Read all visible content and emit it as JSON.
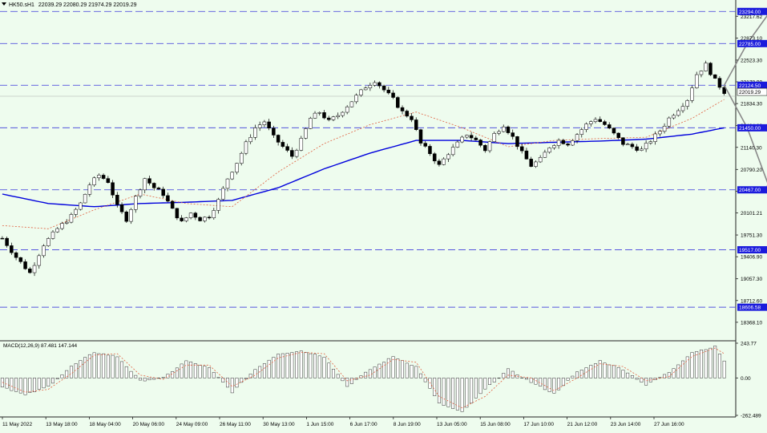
{
  "header": {
    "symbol": "HK50.sH1",
    "ohlc": "22039.29 22080.29 21974.29 22019.29"
  },
  "macd": {
    "label": "MACD(12,26,9) 87.481 147.144",
    "ticks": [
      "243.77",
      "0.00",
      "-262.489"
    ]
  },
  "colors": {
    "background": "#eefcee",
    "ma_blue": "#0000dd",
    "ma_red": "#e06040",
    "level_line": "#5555dd",
    "level_label_bg": "#1b1bdc",
    "current_label_bg": "#ffffff",
    "arrow": "#888888",
    "candle": "#000000"
  },
  "chart_data": {
    "type": "candlestick",
    "instrument": "HK50",
    "timeframe": "H1",
    "ylim": [
      18100,
      23450
    ],
    "y_ticks": [
      "23217.62",
      "22873.10",
      "22523.30",
      "22178.90",
      "21834.30",
      "21484.80",
      "21140.30",
      "20790.20",
      "20445.60",
      "20101.21",
      "19751.30",
      "19406.90",
      "19057.30",
      "18712.60",
      "18368.10"
    ],
    "x_labels": [
      "11 May 2022",
      "13 May 18:00",
      "18 May 04:00",
      "20 May 06:00",
      "24 May 09:00",
      "26 May 11:00",
      "30 May 13:00",
      "1 Jun 15:00",
      "6 Jun 17:00",
      "8 Jun 19:00",
      "13 Jun 05:00",
      "15 Jun 08:00",
      "17 Jun 10:00",
      "21 Jun 12:00",
      "23 Jun 14:00",
      "27 Jun 16:00"
    ],
    "levels": [
      {
        "label": "23294.00",
        "value": 23294.0
      },
      {
        "label": "22785.00",
        "value": 22785.0
      },
      {
        "label": "22124.50",
        "value": 22124.5
      },
      {
        "label": "21450.00",
        "value": 21450.0
      },
      {
        "label": "20467.00",
        "value": 20467.0
      },
      {
        "label": "19517.00",
        "value": 19517.0
      },
      {
        "label": "18606.58",
        "value": 18606.58
      }
    ],
    "current_price": {
      "label": "22019.29",
      "value": 22019.29
    },
    "close_path": [
      [
        0,
        19700
      ],
      [
        3,
        19400
      ],
      [
        6,
        19150
      ],
      [
        9,
        19600
      ],
      [
        12,
        19850
      ],
      [
        15,
        20050
      ],
      [
        17,
        20250
      ],
      [
        19,
        20550
      ],
      [
        21,
        20700
      ],
      [
        23,
        20600
      ],
      [
        25,
        20200
      ],
      [
        27,
        20000
      ],
      [
        29,
        20350
      ],
      [
        31,
        20650
      ],
      [
        33,
        20500
      ],
      [
        35,
        20400
      ],
      [
        37,
        20150
      ],
      [
        39,
        19950
      ],
      [
        41,
        20100
      ],
      [
        43,
        20000
      ],
      [
        45,
        20050
      ],
      [
        47,
        20300
      ],
      [
        49,
        20650
      ],
      [
        51,
        20900
      ],
      [
        53,
        21200
      ],
      [
        55,
        21450
      ],
      [
        57,
        21550
      ],
      [
        59,
        21300
      ],
      [
        61,
        21150
      ],
      [
        63,
        21000
      ],
      [
        65,
        21250
      ],
      [
        67,
        21600
      ],
      [
        69,
        21700
      ],
      [
        71,
        21550
      ],
      [
        73,
        21650
      ],
      [
        75,
        21800
      ],
      [
        77,
        21950
      ],
      [
        79,
        22100
      ],
      [
        81,
        22200
      ],
      [
        83,
        22050
      ],
      [
        85,
        21900
      ],
      [
        87,
        21700
      ],
      [
        89,
        21600
      ],
      [
        91,
        21200
      ],
      [
        93,
        21050
      ],
      [
        95,
        20850
      ],
      [
        97,
        21050
      ],
      [
        99,
        21200
      ],
      [
        101,
        21350
      ],
      [
        103,
        21250
      ],
      [
        105,
        21100
      ],
      [
        107,
        21350
      ],
      [
        109,
        21500
      ],
      [
        111,
        21300
      ],
      [
        113,
        21050
      ],
      [
        115,
        20850
      ],
      [
        117,
        20950
      ],
      [
        119,
        21150
      ],
      [
        121,
        21250
      ],
      [
        123,
        21200
      ],
      [
        125,
        21350
      ],
      [
        127,
        21500
      ],
      [
        129,
        21600
      ],
      [
        131,
        21500
      ],
      [
        133,
        21350
      ],
      [
        135,
        21200
      ],
      [
        137,
        21150
      ],
      [
        139,
        21100
      ],
      [
        141,
        21250
      ],
      [
        143,
        21400
      ],
      [
        145,
        21600
      ],
      [
        147,
        21750
      ],
      [
        149,
        21900
      ],
      [
        151,
        22300
      ],
      [
        153,
        22450
      ],
      [
        155,
        22200
      ],
      [
        157,
        22019
      ]
    ],
    "projection": {
      "origin": [
        157,
        22124.5
      ],
      "up": [
        [
          162,
          22785
        ],
        [
          167,
          23294
        ]
      ],
      "down": [
        [
          162,
          21450
        ],
        [
          167,
          20467
        ]
      ]
    },
    "ma_slow": [
      [
        0,
        20400
      ],
      [
        10,
        20250
      ],
      [
        20,
        20200
      ],
      [
        30,
        20250
      ],
      [
        40,
        20270
      ],
      [
        50,
        20300
      ],
      [
        60,
        20500
      ],
      [
        70,
        20800
      ],
      [
        80,
        21050
      ],
      [
        90,
        21250
      ],
      [
        100,
        21250
      ],
      [
        110,
        21200
      ],
      [
        120,
        21220
      ],
      [
        130,
        21240
      ],
      [
        140,
        21270
      ],
      [
        150,
        21350
      ],
      [
        157,
        21450
      ]
    ],
    "ma_fast": [
      [
        0,
        19900
      ],
      [
        10,
        19850
      ],
      [
        20,
        20150
      ],
      [
        30,
        20400
      ],
      [
        40,
        20250
      ],
      [
        50,
        20200
      ],
      [
        60,
        20750
      ],
      [
        70,
        21200
      ],
      [
        80,
        21500
      ],
      [
        90,
        21700
      ],
      [
        100,
        21450
      ],
      [
        110,
        21150
      ],
      [
        120,
        21250
      ],
      [
        130,
        21280
      ],
      [
        140,
        21300
      ],
      [
        150,
        21600
      ],
      [
        157,
        21900
      ]
    ],
    "macd": {
      "ylim": [
        -262.489,
        243.77
      ],
      "hist_path": [
        [
          0,
          -60
        ],
        [
          5,
          -120
        ],
        [
          10,
          -60
        ],
        [
          15,
          80
        ],
        [
          20,
          180
        ],
        [
          25,
          150
        ],
        [
          30,
          -20
        ],
        [
          35,
          0
        ],
        [
          40,
          120
        ],
        [
          45,
          70
        ],
        [
          50,
          -100
        ],
        [
          55,
          60
        ],
        [
          60,
          170
        ],
        [
          65,
          190
        ],
        [
          70,
          150
        ],
        [
          75,
          -60
        ],
        [
          80,
          60
        ],
        [
          85,
          150
        ],
        [
          90,
          80
        ],
        [
          95,
          -180
        ],
        [
          100,
          -240
        ],
        [
          105,
          -80
        ],
        [
          110,
          60
        ],
        [
          115,
          -30
        ],
        [
          120,
          -110
        ],
        [
          125,
          40
        ],
        [
          130,
          120
        ],
        [
          135,
          60
        ],
        [
          140,
          -50
        ],
        [
          145,
          40
        ],
        [
          150,
          180
        ],
        [
          155,
          220
        ],
        [
          157,
          120
        ]
      ],
      "signal_path": [
        [
          0,
          -30
        ],
        [
          5,
          -100
        ],
        [
          10,
          -80
        ],
        [
          15,
          30
        ],
        [
          20,
          160
        ],
        [
          25,
          170
        ],
        [
          30,
          20
        ],
        [
          35,
          -10
        ],
        [
          40,
          90
        ],
        [
          45,
          90
        ],
        [
          50,
          -60
        ],
        [
          55,
          20
        ],
        [
          60,
          140
        ],
        [
          65,
          180
        ],
        [
          70,
          170
        ],
        [
          75,
          -20
        ],
        [
          80,
          20
        ],
        [
          85,
          130
        ],
        [
          90,
          110
        ],
        [
          95,
          -130
        ],
        [
          100,
          -210
        ],
        [
          105,
          -130
        ],
        [
          110,
          20
        ],
        [
          115,
          0
        ],
        [
          120,
          -90
        ],
        [
          125,
          0
        ],
        [
          130,
          100
        ],
        [
          135,
          80
        ],
        [
          140,
          -20
        ],
        [
          145,
          10
        ],
        [
          150,
          150
        ],
        [
          155,
          210
        ],
        [
          157,
          170
        ]
      ]
    }
  }
}
